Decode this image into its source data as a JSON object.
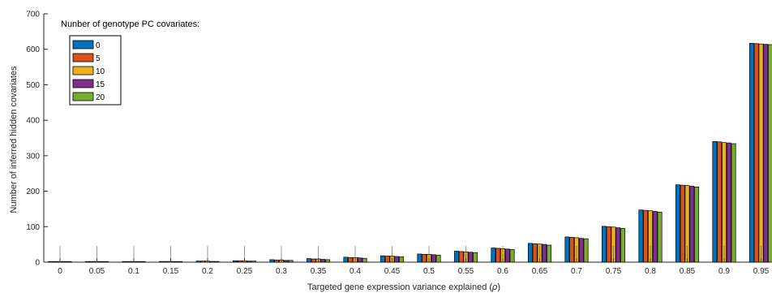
{
  "chart_data": {
    "type": "bar",
    "xlabel": "Targeted gene expression variance explained (ρ)",
    "ylabel": "Number of inferred hidden covariates",
    "ylim": [
      0,
      700
    ],
    "yticks": [
      0,
      100,
      200,
      300,
      400,
      500,
      600,
      700
    ],
    "categories": [
      "0",
      "0.05",
      "0.1",
      "0.15",
      "0.2",
      "0.25",
      "0.3",
      "0.35",
      "0.4",
      "0.45",
      "0.5",
      "0.55",
      "0.6",
      "0.65",
      "0.7",
      "0.75",
      "0.8",
      "0.85",
      "0.9",
      "0.95"
    ],
    "legend": {
      "title": "Nunber of genotype PC covariates:",
      "position": "top-left"
    },
    "series": [
      {
        "name": "0",
        "color": "#0072BD",
        "values": [
          1,
          1,
          1,
          2,
          3,
          4,
          7,
          10,
          14,
          18,
          23,
          31,
          40,
          53,
          71,
          101,
          147,
          218,
          340,
          617
        ]
      },
      {
        "name": "5",
        "color": "#D95319",
        "values": [
          1,
          1,
          1,
          2,
          3,
          4,
          6,
          9,
          13,
          17,
          22,
          30,
          39,
          52,
          70,
          100,
          146,
          217,
          339,
          616
        ]
      },
      {
        "name": "10",
        "color": "#EDB120",
        "values": [
          1,
          1,
          1,
          2,
          3,
          4,
          6,
          9,
          13,
          17,
          22,
          29,
          38,
          51,
          69,
          99,
          145,
          216,
          337,
          615
        ]
      },
      {
        "name": "15",
        "color": "#7E2F8E",
        "values": [
          1,
          1,
          1,
          1,
          2,
          3,
          5,
          8,
          12,
          16,
          21,
          28,
          37,
          50,
          67,
          97,
          143,
          214,
          336,
          614
        ]
      },
      {
        "name": "20",
        "color": "#77AC30",
        "values": [
          1,
          1,
          1,
          1,
          2,
          3,
          5,
          7,
          11,
          15,
          20,
          27,
          36,
          48,
          66,
          95,
          141,
          212,
          334,
          613
        ]
      }
    ]
  }
}
